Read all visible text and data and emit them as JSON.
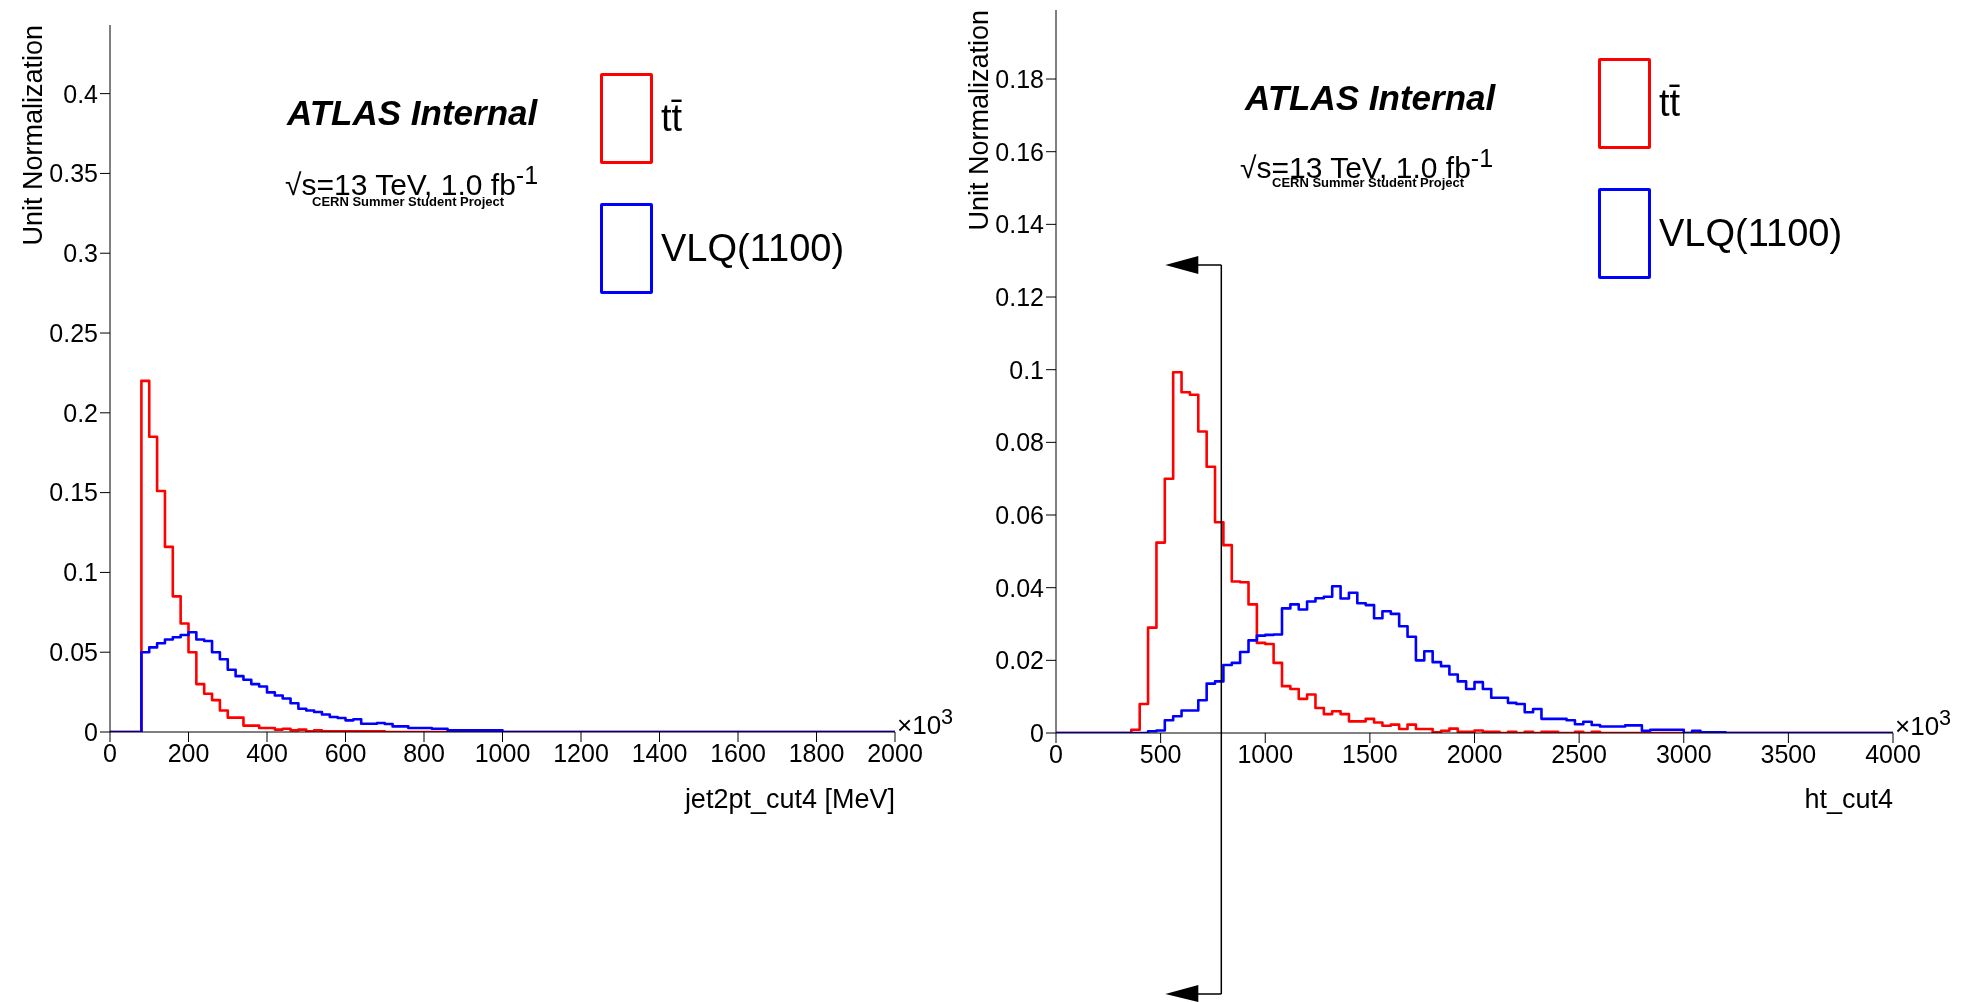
{
  "chart_data": [
    {
      "type": "histogram",
      "xlabel": "jet2pt_cut4 [MeV]",
      "ylabel": "Unit Normalization",
      "xlim": [
        0,
        2000
      ],
      "ylim": [
        0,
        0.443
      ],
      "xticks": [
        0,
        200,
        400,
        600,
        800,
        1000,
        1200,
        1400,
        1600,
        1800,
        2000
      ],
      "yticks": [
        0,
        0.05,
        0.1,
        0.15,
        0.2,
        0.25,
        0.3,
        0.35,
        0.4
      ],
      "legend": "top right",
      "annotations": [
        "ATLAS Internal",
        "√s=13 TeV, 1.0 fb$^{-1}$",
        "CERN Summer Student Project",
        "×10$^{3}$"
      ],
      "bins": [
        0,
        80,
        100,
        120,
        140,
        160,
        180,
        200,
        220,
        240,
        260,
        280,
        300,
        320,
        340,
        360,
        380,
        400,
        420,
        440,
        460,
        480,
        500,
        520,
        540,
        560,
        580,
        600,
        620,
        640,
        660,
        680,
        700,
        720,
        740,
        760,
        780,
        800,
        820,
        840,
        860,
        880,
        900,
        920,
        940,
        960,
        980,
        1000,
        2000
      ],
      "series": [
        {
          "name": "tt̄",
          "color": "#ff0000",
          "values": [
            0,
            0.22,
            0.185,
            0.151,
            0.116,
            0.085,
            0.068,
            0.05,
            0.03,
            0.024,
            0.02,
            0.0135,
            0.009,
            0.009,
            0.004,
            0.004,
            0.0025,
            0.0025,
            0.0015,
            0.002,
            0.001,
            0.0015,
            0.0005,
            0.001,
            0.0005,
            0.0005,
            0.0005,
            0.0005,
            0.0005,
            0.0005,
            0.0005,
            0.0005,
            0,
            0,
            0,
            0,
            0,
            0,
            0,
            0,
            0,
            0,
            0,
            0,
            0,
            0,
            0,
            0
          ]
        },
        {
          "name": "VLQ(1100)",
          "color": "#0000ff",
          "values": [
            0,
            0.05,
            0.053,
            0.0556,
            0.058,
            0.0594,
            0.0608,
            0.0625,
            0.058,
            0.057,
            0.05,
            0.0456,
            0.039,
            0.035,
            0.0327,
            0.03,
            0.0285,
            0.0248,
            0.0229,
            0.021,
            0.018,
            0.0146,
            0.0135,
            0.0125,
            0.011,
            0.0094,
            0.0088,
            0.0073,
            0.008,
            0.0052,
            0.0052,
            0.0056,
            0.005,
            0.0035,
            0.0035,
            0.0025,
            0.0025,
            0.0025,
            0.002,
            0.002,
            0.001,
            0.001,
            0.001,
            0.001,
            0.001,
            0.001,
            0.001,
            0
          ]
        }
      ]
    },
    {
      "type": "histogram",
      "xlabel": "ht_cut4",
      "ylabel": "Unit Normalization",
      "xlim": [
        0,
        4000
      ],
      "ylim": [
        0,
        0.199
      ],
      "xticks": [
        0,
        500,
        1000,
        1500,
        2000,
        2500,
        3000,
        3500,
        4000
      ],
      "yticks": [
        0,
        0.02,
        0.04,
        0.06,
        0.08,
        0.1,
        0.12,
        0.14,
        0.16,
        0.18
      ],
      "legend": "top right",
      "ref_lines": [
        {
          "axis": "x",
          "value": 790,
          "color": "#000000"
        }
      ],
      "annotations": [
        "ATLAS Internal",
        "√s=13 TeV, 1.0 fb$^{-1}$",
        "CERN Summer Student Project",
        "×10$^{3}$"
      ],
      "bins": [
        0,
        360,
        400,
        440,
        480,
        520,
        560,
        600,
        640,
        680,
        720,
        760,
        800,
        840,
        880,
        920,
        960,
        1000,
        1040,
        1080,
        1120,
        1160,
        1200,
        1240,
        1280,
        1320,
        1360,
        1400,
        1440,
        1480,
        1520,
        1560,
        1600,
        1640,
        1680,
        1720,
        1760,
        1800,
        1840,
        1880,
        1920,
        1960,
        2000,
        2040,
        2080,
        2120,
        2160,
        2200,
        2240,
        2280,
        2320,
        2360,
        2400,
        2440,
        2480,
        2520,
        2560,
        2600,
        2640,
        2680,
        2720,
        2760,
        2800,
        2840,
        2880,
        2920,
        2960,
        3000,
        3040,
        3080,
        3120,
        3160,
        3200,
        4000
      ],
      "series": [
        {
          "name": "tt̄",
          "color": "#ff0000",
          "values": [
            0,
            0.0009,
            0.008,
            0.029,
            0.0524,
            0.07,
            0.0993,
            0.0938,
            0.0931,
            0.083,
            0.0733,
            0.058,
            0.0517,
            0.0417,
            0.0415,
            0.0354,
            0.0248,
            0.0245,
            0.0193,
            0.0129,
            0.0121,
            0.0094,
            0.0106,
            0.0069,
            0.0052,
            0.006,
            0.0052,
            0.0032,
            0.0032,
            0.0039,
            0.0029,
            0.002,
            0.0023,
            0.0011,
            0.0023,
            0.0011,
            0.0011,
            0.0002,
            0.0006,
            0.0012,
            0.0003,
            0.0003,
            0.0007,
            0.0003,
            0.0003,
            0,
            0.0003,
            0,
            0.0003,
            0,
            0.0003,
            0.0003,
            0,
            0,
            0.0003,
            0,
            0.0003,
            0,
            0,
            0,
            0,
            0,
            0,
            0,
            0,
            0,
            0,
            0,
            0,
            0,
            0,
            0,
            0
          ]
        },
        {
          "name": "VLQ(1100)",
          "color": "#0000ff",
          "values": [
            0,
            0,
            0,
            0.0005,
            0.0007,
            0.0035,
            0.0046,
            0.0062,
            0.0062,
            0.009,
            0.0136,
            0.0142,
            0.0187,
            0.0193,
            0.0223,
            0.0255,
            0.0268,
            0.027,
            0.0271,
            0.0343,
            0.0354,
            0.034,
            0.0362,
            0.0371,
            0.0375,
            0.0404,
            0.037,
            0.0386,
            0.0357,
            0.0352,
            0.0316,
            0.0335,
            0.0328,
            0.0294,
            0.0265,
            0.02,
            0.0225,
            0.0195,
            0.0184,
            0.0161,
            0.0142,
            0.0121,
            0.014,
            0.0121,
            0.0097,
            0.0097,
            0.0083,
            0.008,
            0.0057,
            0.0066,
            0.0039,
            0.0039,
            0.0039,
            0.0035,
            0.0024,
            0.0031,
            0.0022,
            0.0018,
            0.0018,
            0.0018,
            0.0021,
            0.0021,
            0.0006,
            0.0009,
            0.0009,
            0.0009,
            0.0009,
            0,
            0.0006,
            0.0002,
            0.0002,
            0.0002,
            0
          ]
        }
      ]
    }
  ]
}
